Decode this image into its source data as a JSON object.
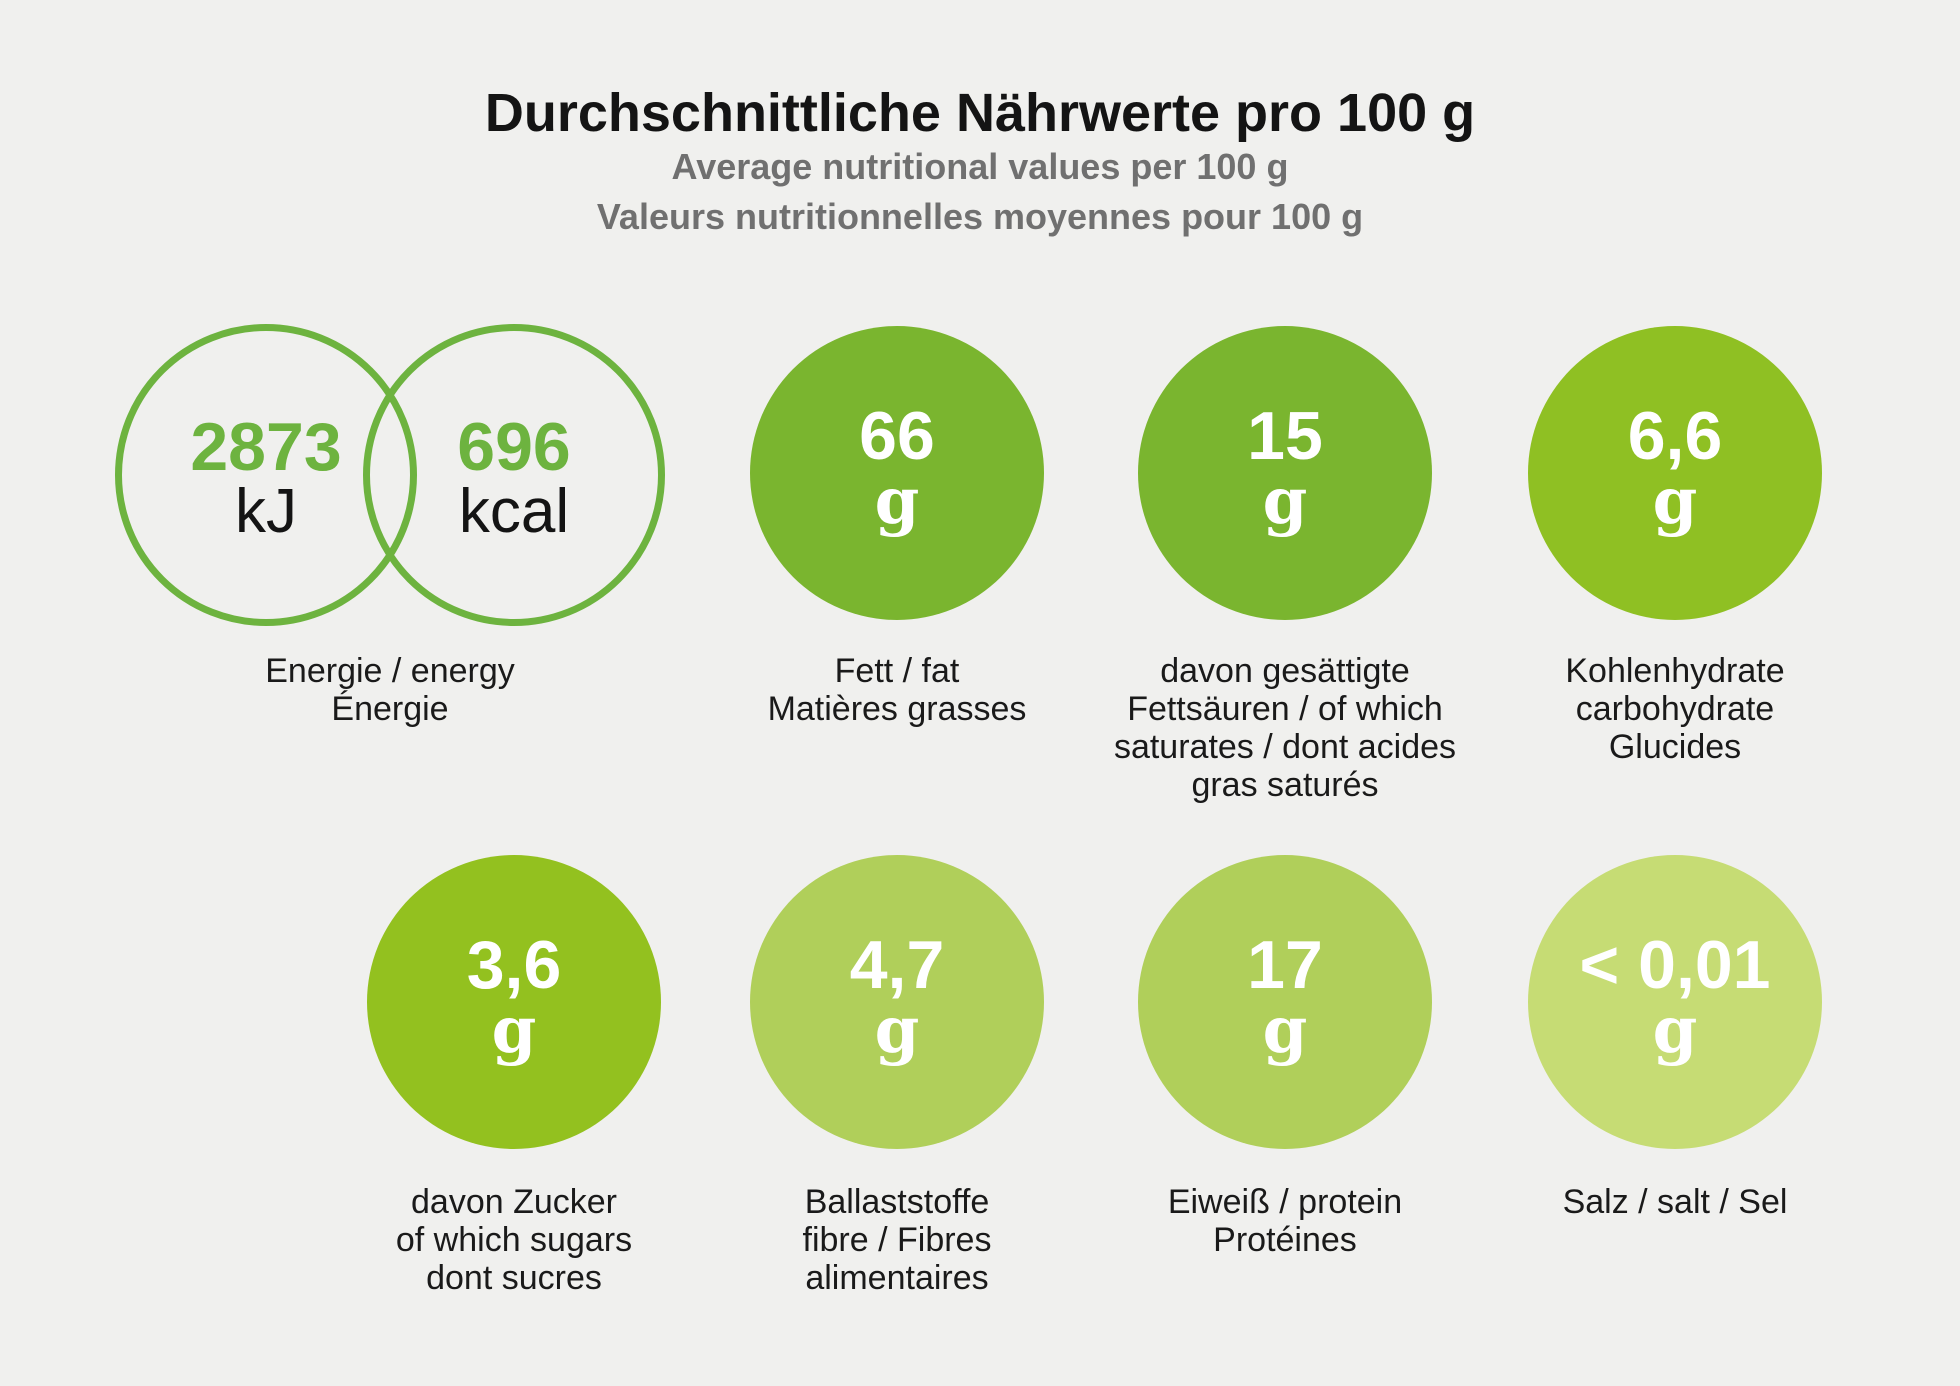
{
  "header": {
    "title_de": "Durchschnittliche Nährwerte pro 100 g",
    "title_en": "Average nutritional values per 100 g",
    "title_fr": "Valeurs nutritionnelles moyennes pour 100 g"
  },
  "energy": {
    "kj_value": "2873",
    "kj_unit": "kJ",
    "kcal_value": "696",
    "kcal_unit": "kcal",
    "label": [
      "Energie / energy",
      "Énergie"
    ]
  },
  "nutrients": [
    {
      "value": "66",
      "unit": "g",
      "color": "#7ab52f",
      "label": [
        "Fett / fat",
        "Matières grasses"
      ]
    },
    {
      "value": "15",
      "unit": "g",
      "color": "#7ab52f",
      "label": [
        "davon gesättigte",
        "Fettsäuren / of which",
        "saturates / dont acides",
        "gras saturés"
      ]
    },
    {
      "value": "6,6",
      "unit": "g",
      "color": "#8fc023",
      "label": [
        "Kohlenhydrate",
        "carbohydrate",
        "Glucides"
      ]
    },
    {
      "value": "3,6",
      "unit": "g",
      "color": "#93c11f",
      "label": [
        "davon Zucker",
        "of which sugars",
        "dont sucres"
      ]
    },
    {
      "value": "4,7",
      "unit": "g",
      "color": "#b0cf5a",
      "label": [
        "Ballaststoffe",
        "fibre / Fibres",
        "alimentaires"
      ]
    },
    {
      "value": "17",
      "unit": "g",
      "color": "#b0cf5a",
      "label": [
        "Eiweiß / protein",
        "Protéines"
      ]
    },
    {
      "value": "< 0,01",
      "unit": "g",
      "color": "#c6dc74",
      "label": [
        "Salz / salt / Sel"
      ]
    }
  ]
}
